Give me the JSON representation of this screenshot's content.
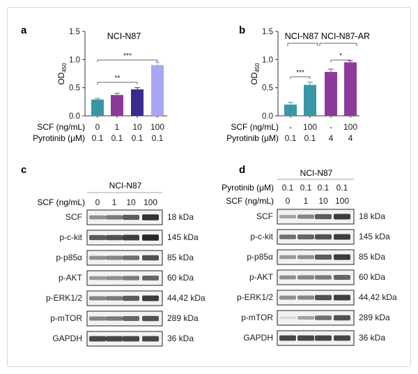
{
  "chart_data": [
    {
      "panel": "a",
      "type": "bar",
      "title": "NCI-N87",
      "ylabel": "OD",
      "ylabel_sub": "450",
      "ylim": [
        0,
        1.5
      ],
      "yticks": [
        "0.0",
        "0.5",
        "1.0",
        "1.5"
      ],
      "grid": false,
      "row_labels": [
        "SCF (ng/mL)",
        "Pyrotinib (μM)"
      ],
      "categories": [
        {
          "scf": "0",
          "pyrotinib": "0.1"
        },
        {
          "scf": "1",
          "pyrotinib": "0.1"
        },
        {
          "scf": "10",
          "pyrotinib": "0.1"
        },
        {
          "scf": "100",
          "pyrotinib": "0.1"
        }
      ],
      "values": [
        0.29,
        0.37,
        0.47,
        0.9
      ],
      "errors": [
        0.02,
        0.03,
        0.03,
        0.05
      ],
      "colors": [
        "#3a96a6",
        "#8c3a9a",
        "#3b2a8e",
        "#a8a6f4"
      ],
      "annotations": [
        {
          "text": "**",
          "from": 0,
          "to": 2
        },
        {
          "text": "***",
          "from": 0,
          "to": 3
        }
      ]
    },
    {
      "panel": "b",
      "type": "bar",
      "group_labels": [
        "NCI-N87",
        "NCI-N87-AR"
      ],
      "ylabel": "OD",
      "ylabel_sub": "450",
      "ylim": [
        0,
        1.5
      ],
      "yticks": [
        "0.0",
        "0.5",
        "1.0",
        "1.5"
      ],
      "grid": false,
      "row_labels": [
        "SCF (ng/mL)",
        "Pyrotinib (μM)"
      ],
      "categories": [
        {
          "scf": "-",
          "pyrotinib": "0.1"
        },
        {
          "scf": "100",
          "pyrotinib": "0.1"
        },
        {
          "scf": "-",
          "pyrotinib": "4"
        },
        {
          "scf": "100",
          "pyrotinib": "4"
        }
      ],
      "values": [
        0.2,
        0.55,
        0.78,
        0.95
      ],
      "errors": [
        0.04,
        0.05,
        0.05,
        0.03
      ],
      "colors": [
        "#3a96a6",
        "#3a96a6",
        "#8c3a9a",
        "#8c3a9a"
      ],
      "annotations": [
        {
          "text": "***",
          "from": 0,
          "to": 1
        },
        {
          "text": "*",
          "from": 2,
          "to": 3
        }
      ]
    }
  ],
  "panels": {
    "a": {
      "label": "a"
    },
    "b": {
      "label": "b"
    },
    "c": {
      "label": "c"
    },
    "d": {
      "label": "d"
    }
  },
  "blot_c": {
    "header": "NCI-N87",
    "condition_labels": [
      "SCF (ng/mL)"
    ],
    "conditions": [
      [
        "0",
        "1",
        "10",
        "100"
      ]
    ],
    "rows": [
      {
        "protein": "SCF",
        "size": "18 kDa",
        "intensity": [
          0.45,
          0.55,
          0.7,
          0.9
        ]
      },
      {
        "protein": "p-c-kit",
        "size": "145 kDa",
        "intensity": [
          0.7,
          0.75,
          0.85,
          0.95
        ]
      },
      {
        "protein": "p-p85α",
        "size": "85 kDa",
        "intensity": [
          0.45,
          0.5,
          0.6,
          0.75
        ]
      },
      {
        "protein": "p-AKT",
        "size": "60 kDa",
        "intensity": [
          0.4,
          0.45,
          0.55,
          0.65
        ]
      },
      {
        "protein": "p-ERK1/2",
        "size": "44,42 kDa",
        "intensity": [
          0.5,
          0.55,
          0.7,
          0.85
        ]
      },
      {
        "protein": "p-mTOR",
        "size": "289 kDa",
        "intensity": [
          0.5,
          0.55,
          0.65,
          0.75
        ]
      },
      {
        "protein": "GAPDH",
        "size": "36 kDa",
        "intensity": [
          0.8,
          0.8,
          0.8,
          0.8
        ]
      }
    ]
  },
  "blot_d": {
    "header": "NCI-N87",
    "condition_labels": [
      "Pyrotinib (μM)",
      "SCF (ng/mL)"
    ],
    "conditions": [
      [
        "0.1",
        "0.1",
        "0.1",
        "0.1"
      ],
      [
        "0",
        "1",
        "10",
        "100"
      ]
    ],
    "rows": [
      {
        "protein": "SCF",
        "size": "18 kDa",
        "intensity": [
          0.35,
          0.5,
          0.7,
          0.85
        ]
      },
      {
        "protein": "p-c-kit",
        "size": "145 kDa",
        "intensity": [
          0.6,
          0.65,
          0.75,
          0.85
        ]
      },
      {
        "protein": "p-p85α",
        "size": "85 kDa",
        "intensity": [
          0.4,
          0.45,
          0.7,
          0.85
        ]
      },
      {
        "protein": "p-AKT",
        "size": "60 kDa",
        "intensity": [
          0.45,
          0.5,
          0.55,
          0.65
        ]
      },
      {
        "protein": "p-ERK1/2",
        "size": "44,42 kDa",
        "intensity": [
          0.45,
          0.5,
          0.75,
          0.85
        ]
      },
      {
        "protein": "p-mTOR",
        "size": "289 kDa",
        "intensity": [
          0.1,
          0.35,
          0.6,
          0.75
        ]
      },
      {
        "protein": "GAPDH",
        "size": "36 kDa",
        "intensity": [
          0.8,
          0.8,
          0.8,
          0.8
        ]
      }
    ]
  }
}
